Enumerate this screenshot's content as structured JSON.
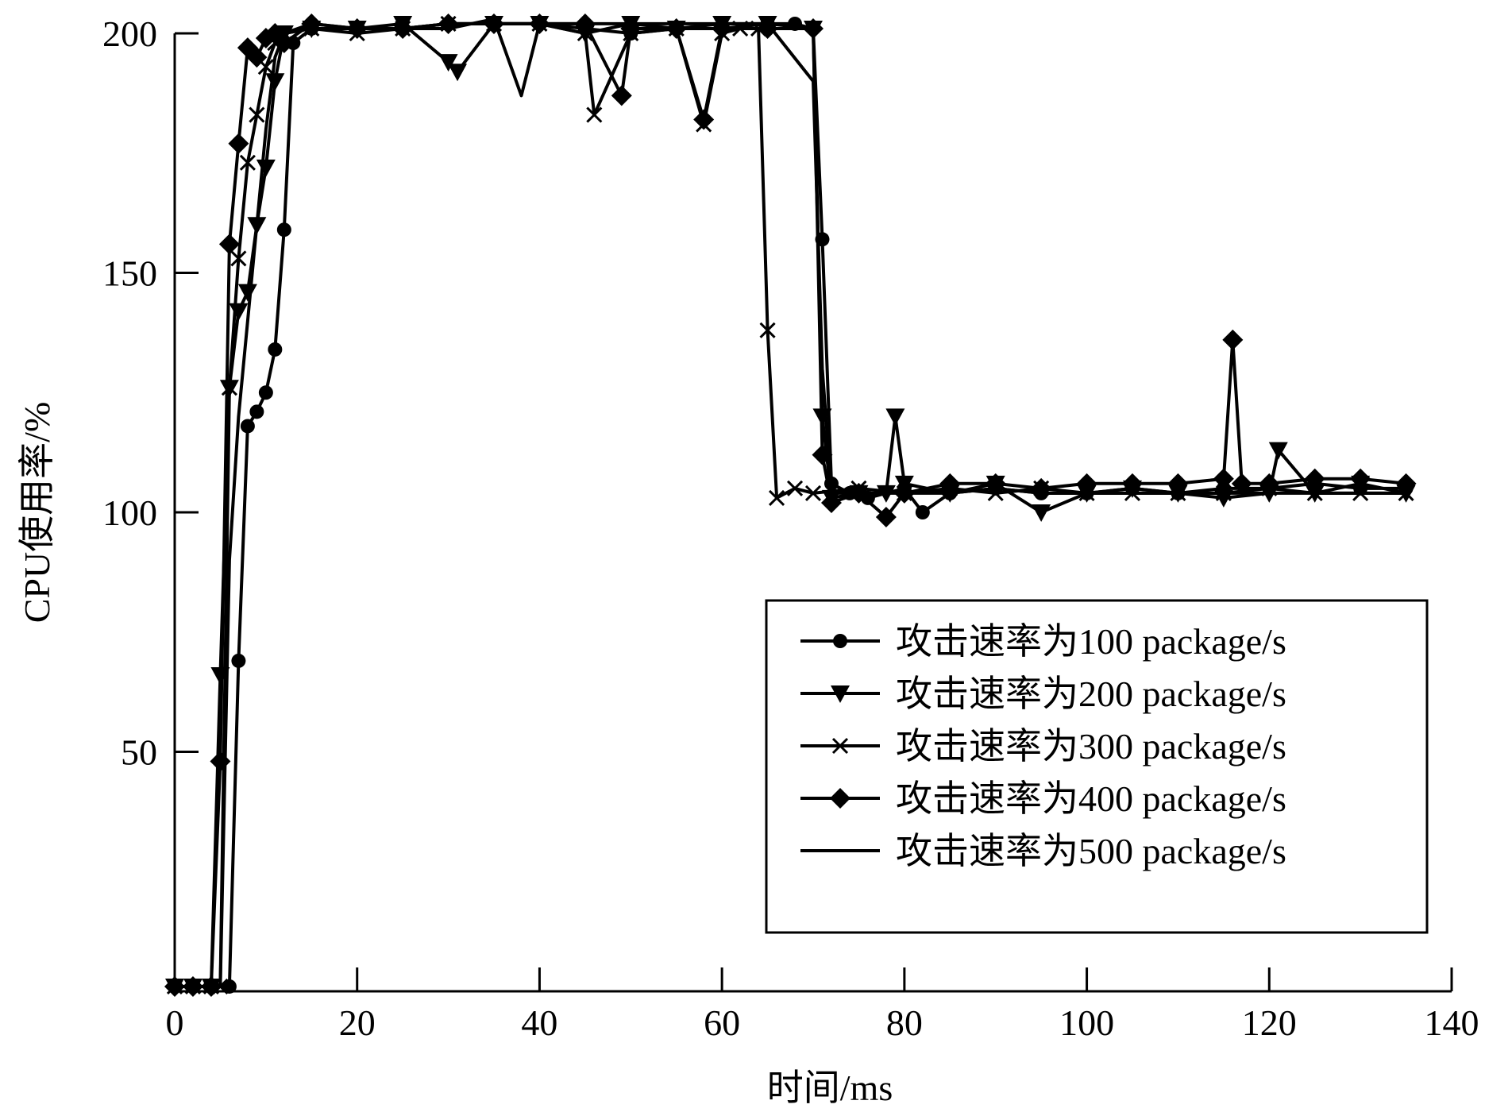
{
  "chart_data": {
    "type": "line",
    "title": "",
    "xlabel": "时间/ms",
    "ylabel": "CPU使用率/%",
    "xlim": [
      0,
      140
    ],
    "ylim": [
      0,
      200
    ],
    "xticks": [
      "0",
      "20",
      "40",
      "60",
      "80",
      "100",
      "120",
      "140"
    ],
    "yticks": [
      "50",
      "100",
      "150",
      "200"
    ],
    "grid": false,
    "legend_position": "bottom-right",
    "colors": {
      "line": "#000000",
      "background": "#ffffff"
    },
    "series": [
      {
        "name": "攻击速率为100 package/s",
        "marker": "circle",
        "x": [
          0,
          2,
          4,
          6,
          7,
          8,
          9,
          10,
          11,
          12,
          13,
          15,
          20,
          25,
          30,
          35,
          40,
          45,
          50,
          55,
          60,
          65,
          68,
          70,
          71,
          72,
          74,
          76,
          80,
          82,
          85,
          90,
          95,
          100,
          105,
          110,
          115,
          120,
          125,
          130,
          135
        ],
        "y": [
          1,
          1,
          1,
          1,
          69,
          118,
          121,
          125,
          134,
          159,
          198,
          201,
          201,
          201,
          202,
          202,
          202,
          201,
          200,
          201,
          201,
          202,
          202,
          201,
          157,
          106,
          104,
          103,
          105,
          100,
          104,
          105,
          104,
          104,
          105,
          104,
          105,
          105,
          106,
          105,
          105
        ]
      },
      {
        "name": "攻击速率为200 package/s",
        "marker": "triangle-down",
        "x": [
          0,
          2,
          4,
          5,
          6,
          7,
          8,
          9,
          10,
          11,
          12,
          15,
          20,
          25,
          30,
          31,
          35,
          40,
          45,
          50,
          55,
          60,
          65,
          70,
          71,
          72,
          75,
          78,
          79,
          80,
          85,
          90,
          95,
          100,
          105,
          110,
          115,
          120,
          121,
          125,
          130,
          135
        ],
        "y": [
          1,
          1,
          1,
          66,
          126,
          142,
          146,
          160,
          172,
          190,
          200,
          201,
          201,
          202,
          194,
          192,
          202,
          202,
          200,
          202,
          201,
          202,
          202,
          201,
          120,
          103,
          104,
          104,
          120,
          106,
          104,
          106,
          100,
          104,
          105,
          104,
          103,
          104,
          113,
          104,
          106,
          104
        ]
      },
      {
        "name": "攻击速率为300 package/s",
        "marker": "x",
        "x": [
          0,
          2,
          4,
          5,
          6,
          7,
          8,
          9,
          10,
          11,
          12,
          15,
          20,
          25,
          30,
          35,
          40,
          45,
          46,
          50,
          55,
          58,
          60,
          62,
          64,
          65,
          66,
          68,
          70,
          75,
          80,
          85,
          90,
          95,
          100,
          105,
          110,
          115,
          120,
          125,
          130,
          135
        ],
        "y": [
          1,
          1,
          1,
          1,
          126,
          153,
          173,
          183,
          193,
          198,
          200,
          201,
          200,
          201,
          202,
          202,
          202,
          200,
          183,
          200,
          201,
          181,
          200,
          201,
          201,
          138,
          103,
          105,
          104,
          105,
          104,
          105,
          104,
          105,
          104,
          104,
          104,
          104,
          105,
          104,
          104,
          104
        ]
      },
      {
        "name": "攻击速率为400 package/s",
        "marker": "diamond",
        "x": [
          0,
          2,
          4,
          5,
          6,
          7,
          8,
          9,
          10,
          11,
          12,
          15,
          20,
          25,
          30,
          35,
          40,
          45,
          49,
          50,
          55,
          58,
          60,
          65,
          70,
          71,
          72,
          75,
          78,
          80,
          85,
          90,
          95,
          100,
          105,
          110,
          115,
          116,
          117,
          120,
          125,
          130,
          135
        ],
        "y": [
          1,
          1,
          1,
          48,
          156,
          177,
          197,
          195,
          199,
          200,
          198,
          202,
          201,
          201,
          202,
          202,
          202,
          202,
          187,
          201,
          201,
          182,
          201,
          201,
          201,
          112,
          102,
          104,
          99,
          104,
          106,
          106,
          105,
          106,
          106,
          106,
          107,
          136,
          106,
          106,
          107,
          107,
          106
        ]
      },
      {
        "name": "攻击速率为500 package/s",
        "marker": "none",
        "x": [
          0,
          2,
          4,
          5,
          6,
          7,
          8,
          9,
          10,
          11,
          12,
          15,
          20,
          25,
          30,
          35,
          38,
          40,
          45,
          50,
          55,
          60,
          65,
          70,
          71,
          72,
          75,
          80,
          85,
          90,
          95,
          100,
          105,
          110,
          115,
          120,
          125,
          130,
          135
        ],
        "y": [
          1,
          1,
          1,
          1,
          90,
          120,
          140,
          160,
          180,
          195,
          200,
          202,
          201,
          201,
          201,
          203,
          187,
          202,
          202,
          202,
          202,
          202,
          202,
          190,
          130,
          104,
          104,
          104,
          104,
          105,
          104,
          104,
          104,
          104,
          104,
          104,
          104,
          104,
          104
        ]
      }
    ]
  }
}
